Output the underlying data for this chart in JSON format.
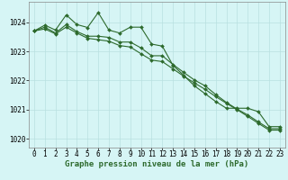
{
  "title": "Graphe pression niveau de la mer (hPa)",
  "bg_color": "#d6f5f5",
  "grid_color": "#b8e0e0",
  "line_color": "#2d6a2d",
  "xlim": [
    -0.5,
    23.5
  ],
  "ylim": [
    1019.7,
    1024.7
  ],
  "yticks": [
    1020,
    1021,
    1022,
    1023,
    1024
  ],
  "xticks": [
    0,
    1,
    2,
    3,
    4,
    5,
    6,
    7,
    8,
    9,
    10,
    11,
    12,
    13,
    14,
    15,
    16,
    17,
    18,
    19,
    20,
    21,
    22,
    23
  ],
  "series1": [
    1023.7,
    1023.9,
    1023.73,
    1024.25,
    1023.92,
    1023.82,
    1024.33,
    1023.73,
    1023.63,
    1023.83,
    1023.83,
    1023.25,
    1023.18,
    1022.52,
    1022.18,
    1021.82,
    1021.55,
    1021.28,
    1021.05,
    1021.05,
    1021.05,
    1020.93,
    1020.42,
    1020.42
  ],
  "series2": [
    1023.7,
    1023.83,
    1023.63,
    1023.92,
    1023.68,
    1023.52,
    1023.52,
    1023.48,
    1023.32,
    1023.32,
    1023.12,
    1022.85,
    1022.85,
    1022.55,
    1022.28,
    1022.02,
    1021.82,
    1021.52,
    1021.25,
    1021.02,
    1020.82,
    1020.58,
    1020.35,
    1020.35
  ],
  "series3": [
    1023.7,
    1023.77,
    1023.6,
    1023.83,
    1023.63,
    1023.45,
    1023.4,
    1023.35,
    1023.2,
    1023.15,
    1022.92,
    1022.7,
    1022.65,
    1022.4,
    1022.15,
    1021.92,
    1021.7,
    1021.45,
    1021.22,
    1021.0,
    1020.77,
    1020.53,
    1020.3,
    1020.3
  ],
  "ylabel_fontsize": 5.5,
  "xlabel_fontsize": 5.5,
  "title_fontsize": 6.5
}
